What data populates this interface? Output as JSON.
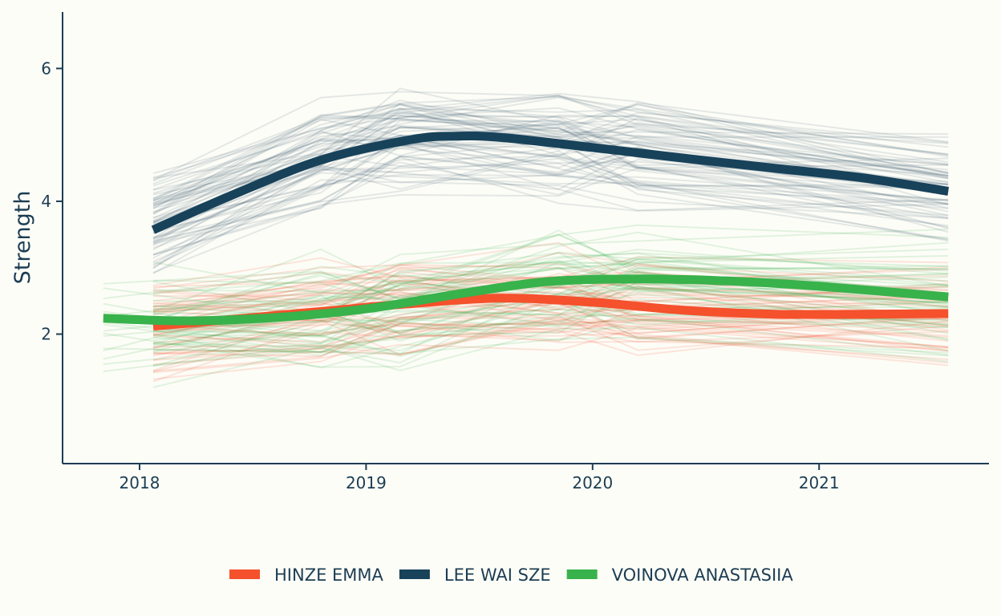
{
  "chart_data": {
    "type": "line",
    "title": "",
    "xlabel": "",
    "ylabel": "Strength",
    "xlim": [
      2017.66,
      2021.75
    ],
    "ylim": [
      0.05,
      6.85
    ],
    "x_ticks": [
      "2018",
      "2019",
      "2020",
      "2021"
    ],
    "x_tick_values": [
      2018,
      2019,
      2020,
      2021
    ],
    "y_ticks": [
      "2",
      "4",
      "6"
    ],
    "y_tick_values": [
      2,
      4,
      6
    ],
    "grid": false,
    "legend_position": "bottom",
    "series": [
      {
        "name": "HINZE EMMA",
        "color": "#f4512c",
        "x": [
          2018.06,
          2018.4,
          2018.8,
          2019.2,
          2019.6,
          2020.0,
          2020.4,
          2020.8,
          2021.2,
          2021.57
        ],
        "values": [
          2.12,
          2.22,
          2.34,
          2.46,
          2.54,
          2.48,
          2.36,
          2.3,
          2.3,
          2.31
        ]
      },
      {
        "name": "LEE WAI SZE",
        "color": "#17425a",
        "x": [
          2018.06,
          2018.4,
          2018.8,
          2019.2,
          2019.4,
          2019.6,
          2020.0,
          2020.4,
          2020.8,
          2021.2,
          2021.57
        ],
        "values": [
          3.57,
          4.08,
          4.62,
          4.93,
          4.98,
          4.96,
          4.81,
          4.65,
          4.5,
          4.35,
          4.15
        ]
      },
      {
        "name": "VOINOVA ANASTASIIA",
        "color": "#38b24b",
        "x": [
          2017.84,
          2018.2,
          2018.6,
          2019.0,
          2019.4,
          2019.8,
          2020.2,
          2020.6,
          2021.0,
          2021.57
        ],
        "values": [
          2.24,
          2.2,
          2.25,
          2.38,
          2.6,
          2.79,
          2.83,
          2.8,
          2.72,
          2.56
        ]
      }
    ]
  }
}
